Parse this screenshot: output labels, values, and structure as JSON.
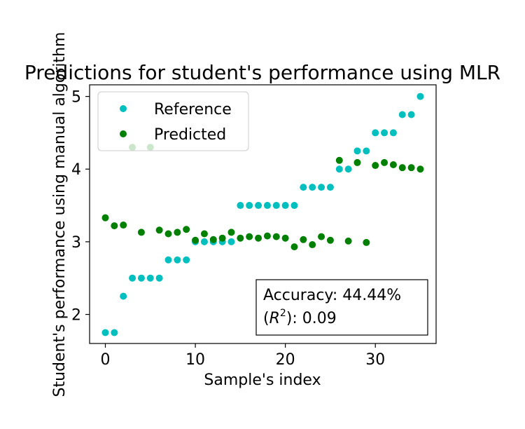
{
  "chart_data": {
    "type": "scatter",
    "title": "Predictions for student's performance using MLR",
    "xlabel": "Sample's index",
    "ylabel": "Student's performance using manual algorithm",
    "xlim": [
      -1.75,
      36.75
    ],
    "ylim": [
      1.6,
      5.16
    ],
    "xticks": [
      0,
      10,
      20,
      30
    ],
    "yticks": [
      2,
      3,
      4,
      5
    ],
    "grid": false,
    "legend_position": "upper-left",
    "series": [
      {
        "name": "Reference",
        "color": "#00bfbf",
        "x": [
          0,
          1,
          2,
          3,
          4,
          5,
          6,
          7,
          8,
          9,
          10,
          11,
          12,
          13,
          14,
          15,
          16,
          17,
          18,
          19,
          20,
          21,
          22,
          23,
          24,
          25,
          26,
          27,
          28,
          29,
          30,
          31,
          32,
          33,
          34,
          35
        ],
        "y": [
          1.75,
          1.75,
          2.25,
          2.5,
          2.5,
          2.5,
          2.5,
          2.75,
          2.75,
          2.75,
          3,
          3,
          3,
          3,
          3,
          3.5,
          3.5,
          3.5,
          3.5,
          3.5,
          3.5,
          3.5,
          3.75,
          3.75,
          3.75,
          3.75,
          4,
          4,
          4.25,
          4.25,
          4.5,
          4.5,
          4.5,
          4.75,
          4.75,
          5
        ]
      },
      {
        "name": "Predicted",
        "color": "#008000",
        "x": [
          0,
          1,
          2,
          3,
          4,
          5,
          6,
          7,
          8,
          9,
          10,
          11,
          12,
          13,
          14,
          15,
          16,
          17,
          18,
          19,
          20,
          21,
          22,
          23,
          24,
          25,
          26,
          27,
          28,
          29,
          30,
          31,
          32,
          33,
          34,
          35
        ],
        "y": [
          3.33,
          3.22,
          3.23,
          4.3,
          3.13,
          4.3,
          3.16,
          3.11,
          3.13,
          3.17,
          3.02,
          3.11,
          3.03,
          3.05,
          3.13,
          3.05,
          3.07,
          3.05,
          3.08,
          3.07,
          3.05,
          2.93,
          3.03,
          2.96,
          3.07,
          3.02,
          4.12,
          3.01,
          4.09,
          2.99,
          4.05,
          4.09,
          4.06,
          4.02,
          4.02,
          4.0
        ]
      }
    ],
    "annotation": {
      "accuracy_text": "Accuracy: 44.44%",
      "r2_prefix": "(",
      "r2_letter": "R",
      "r2_exp": "2",
      "r2_suffix": "): 0.09"
    }
  }
}
